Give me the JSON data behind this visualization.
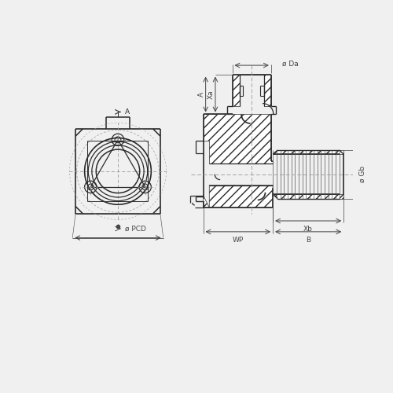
{
  "bg_color": "#f0f0f0",
  "line_color": "#2a2a2a",
  "dim_color": "#444444",
  "centerline_color": "#999999",
  "labels": {
    "A": "A",
    "Xa": "Xa",
    "Da": "ø Da",
    "Gb": "ø Gb",
    "Xb": "Xb",
    "WP": "WP",
    "B": "B",
    "PCD": "ø PCD"
  },
  "figsize": [
    5.0,
    5.0
  ],
  "dpi": 100
}
